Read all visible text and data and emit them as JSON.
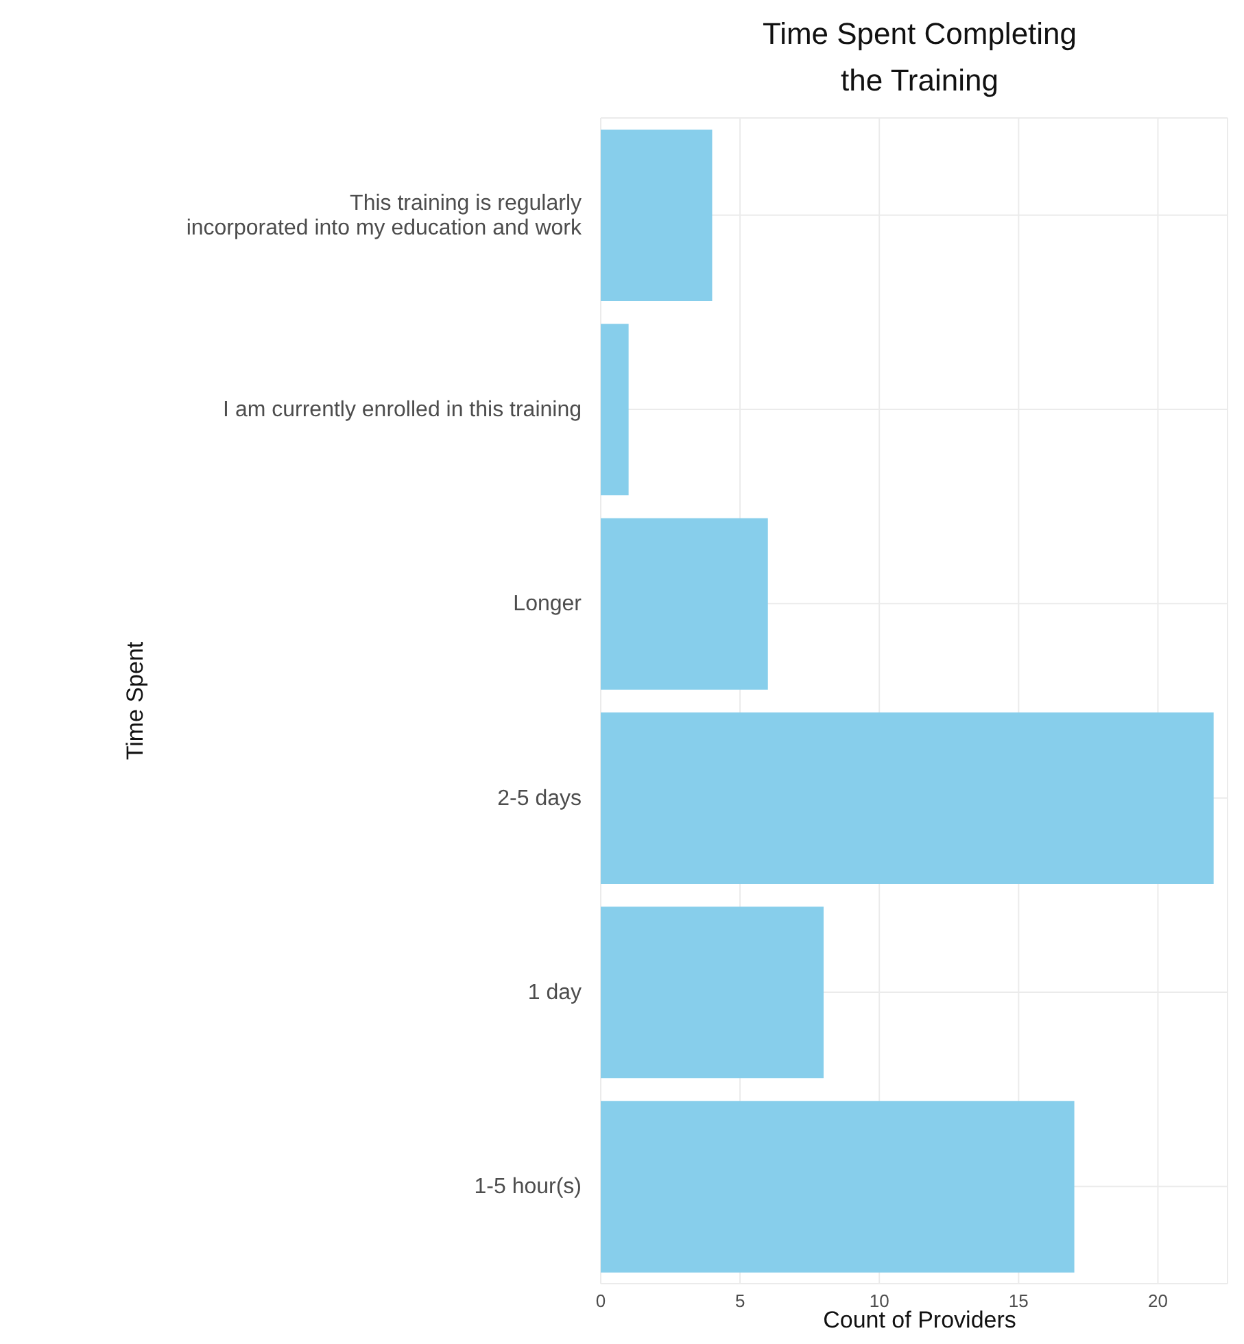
{
  "chart_data": {
    "type": "bar",
    "orientation": "horizontal",
    "title": "Time Spent Completing\nthe Training",
    "xlabel": "Count of Providers",
    "ylabel": "Time Spent",
    "categories": [
      "This training is regularly\nincorporated into my education and work",
      "I am currently enrolled in this training",
      "Longer",
      "2-5 days",
      "1 day",
      "1-5 hour(s)"
    ],
    "values": [
      4,
      1,
      6,
      22,
      8,
      17
    ],
    "color": "#87ceeb",
    "xlim": [
      0,
      22.5
    ],
    "xticks": [
      0,
      5,
      10,
      15,
      20
    ],
    "grid": true
  }
}
